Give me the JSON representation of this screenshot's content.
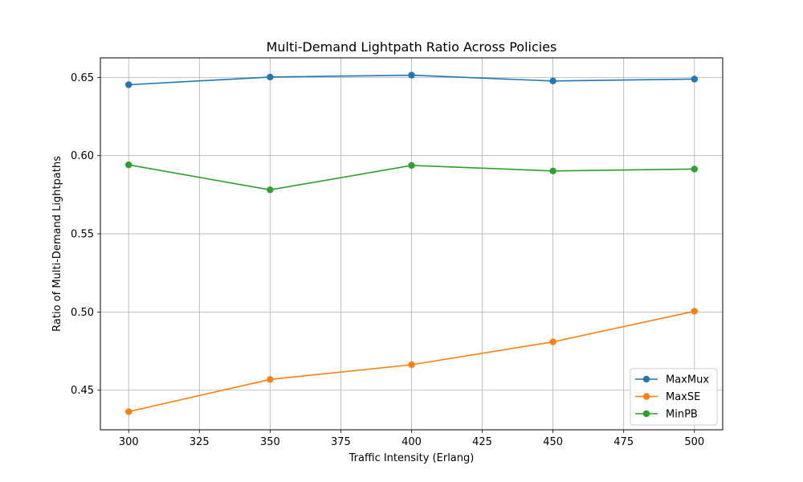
{
  "chart_data": {
    "type": "line",
    "title": "Multi-Demand Lightpath Ratio Across Policies",
    "xlabel": "Traffic Intensity (Erlang)",
    "ylabel": "Ratio of Multi-Demand Lightpaths",
    "x": [
      300,
      350,
      400,
      450,
      500
    ],
    "xlim": [
      290,
      510
    ],
    "ylim": [
      0.4247,
      0.6625
    ],
    "xticks": [
      300,
      325,
      350,
      375,
      400,
      425,
      450,
      475,
      500
    ],
    "yticks": [
      0.45,
      0.5,
      0.55,
      0.6,
      0.65
    ],
    "xtick_labels": [
      "300",
      "325",
      "350",
      "375",
      "400",
      "425",
      "450",
      "475",
      "500"
    ],
    "ytick_labels": [
      "0.45",
      "0.50",
      "0.55",
      "0.60",
      "0.65"
    ],
    "grid": true,
    "legend_position": "lower-right",
    "series": [
      {
        "name": "MaxMux",
        "color": "#1f77b4",
        "values": [
          0.6453,
          0.6502,
          0.6514,
          0.6477,
          0.6489
        ]
      },
      {
        "name": "MaxSE",
        "color": "#ff7f0e",
        "values": [
          0.4363,
          0.4569,
          0.4663,
          0.4809,
          0.5005
        ]
      },
      {
        "name": "MinPB",
        "color": "#2ca02c",
        "values": [
          0.5941,
          0.5781,
          0.5937,
          0.5902,
          0.5914
        ]
      }
    ]
  }
}
